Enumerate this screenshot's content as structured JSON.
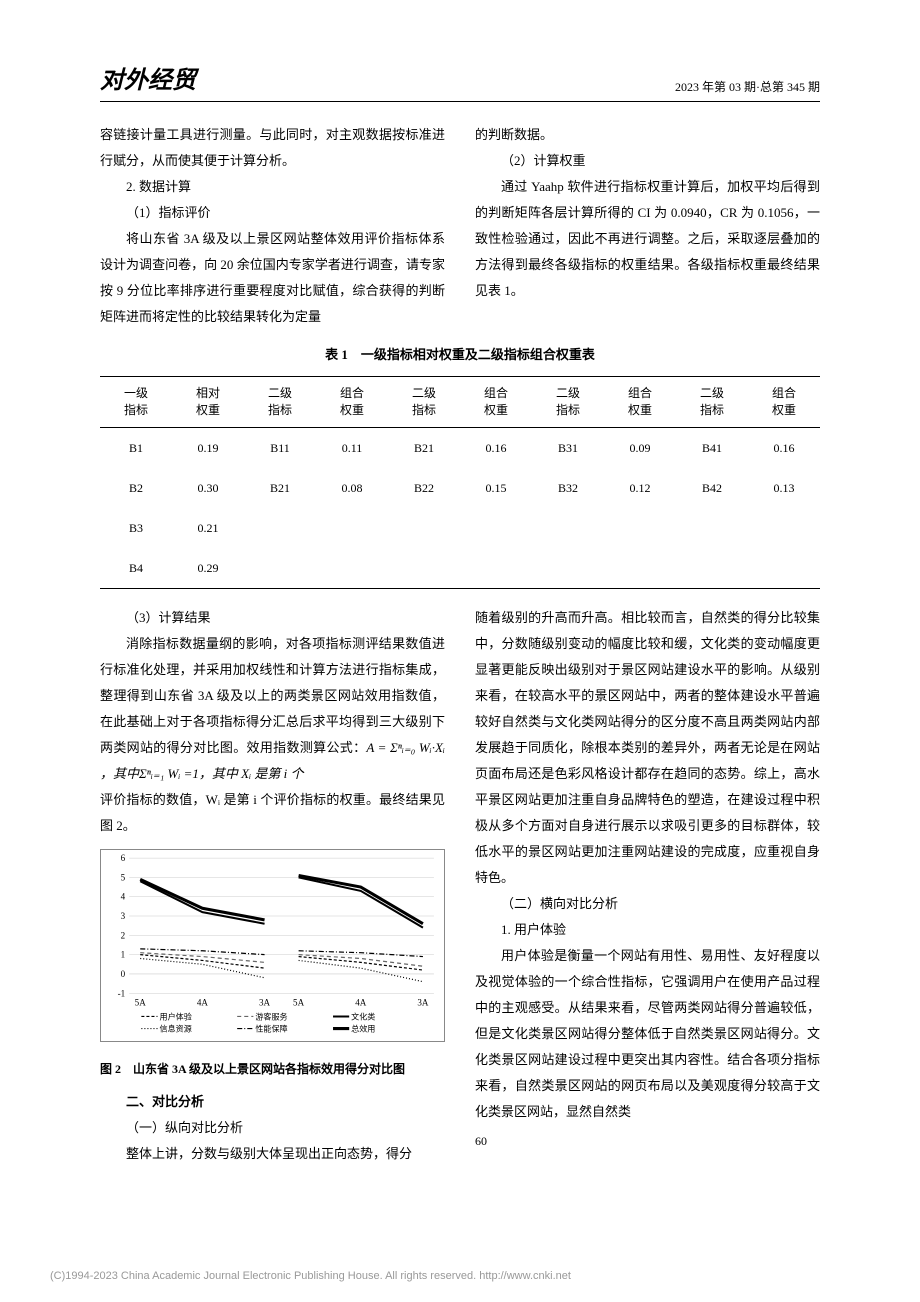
{
  "header": {
    "journal": "对外经贸",
    "issue": "2023 年第 03 期·总第 345 期"
  },
  "text": {
    "p1": "容链接计量工具进行测量。与此同时，对主观数据按标准进行赋分，从而使其便于计算分析。",
    "s2": "2. 数据计算",
    "s2_1": "（1）指标评价",
    "p2": "将山东省 3A 级及以上景区网站整体效用评价指标体系设计为调查问卷，向 20 余位国内专家学者进行调查，请专家按 9 分位比率排序进行重要程度对比赋值，综合获得的判断矩阵进而将定性的比较结果转化为定量",
    "p3": "的判断数据。",
    "s2_2": "（2）计算权重",
    "p4": "通过 Yaahp 软件进行指标权重计算后，加权平均后得到的判断矩阵各层计算所得的 CI 为 0.0940，CR 为 0.1056，一致性检验通过，因此不再进行调整。之后，采取逐层叠加的方法得到最终各级指标的权重结果。各级指标权重最终结果见表 1。",
    "s2_3": "（3）计算结果",
    "p5a": "消除指标数据量纲的影响，对各项指标测评结果数值进行标准化处理，并采用加权线性和计算方法进行指标集成，整理得到山东省 3A 级及以上的两类景区网站效用指数值，在此基础上对于各项指标得分汇总后求平均得到三大级别下两类网站的得分对比图。效用指数测算公式：",
    "formula": "A = Σⁿᵢ₌₀ Wᵢ·Xᵢ ，其中Σⁿᵢ₌₁ Wᵢ =1，其中 Xᵢ 是第 i 个",
    "p5b": "评价指标的数值，Wᵢ 是第 i 个评价指标的权重。最终结果见图 2。",
    "h2": "二、对比分析",
    "h2_1": "（一）纵向对比分析",
    "p6": "整体上讲，分数与级别大体呈现出正向态势，得分",
    "p7": "随着级别的升高而升高。相比较而言，自然类的得分比较集中，分数随级别变动的幅度比较和缓，文化类的变动幅度更显著更能反映出级别对于景区网站建设水平的影响。从级别来看，在较高水平的景区网站中，两者的整体建设水平普遍较好自然类与文化类网站得分的区分度不高且两类网站内部发展趋于同质化，除根本类别的差异外，两者无论是在网站页面布局还是色彩风格设计都存在趋同的态势。综上，高水平景区网站更加注重自身品牌特色的塑造，在建设过程中积极从多个方面对自身进行展示以求吸引更多的目标群体，较低水平的景区网站更加注重网站建设的完成度，应重视自身特色。",
    "h2_2": "（二）横向对比分析",
    "s_ux": "1. 用户体验",
    "p8": "用户体验是衡量一个网站有用性、易用性、友好程度以及视觉体验的一个综合性指标，它强调用户在使用产品过程中的主观感受。从结果来看，尽管两类网站得分普遍较低，但是文化类景区网站得分整体低于自然类景区网站得分。文化类景区网站建设过程中更突出其内容性。结合各项分指标来看，自然类景区网站的网页布局以及美观度得分较高于文化类景区网站，显然自然类"
  },
  "table1": {
    "title": "表 1　一级指标相对权重及二级指标组合权重表",
    "headers": [
      "一级\n指标",
      "相对\n权重",
      "二级\n指标",
      "组合\n权重",
      "二级\n指标",
      "组合\n权重",
      "二级\n指标",
      "组合\n权重",
      "二级\n指标",
      "组合\n权重"
    ],
    "rows": [
      [
        "B1",
        "0.19",
        "B11",
        "0.11",
        "B21",
        "0.16",
        "B31",
        "0.09",
        "B41",
        "0.16"
      ],
      [
        "B2",
        "0.30",
        "B21",
        "0.08",
        "B22",
        "0.15",
        "B32",
        "0.12",
        "B42",
        "0.13"
      ],
      [
        "B3",
        "0.21",
        "",
        "",
        "",
        "",
        "",
        "",
        "",
        ""
      ],
      [
        "B4",
        "0.29",
        "",
        "",
        "",
        "",
        "",
        "",
        "",
        ""
      ]
    ]
  },
  "chart": {
    "type": "line",
    "caption": "图 2　山东省 3A 级及以上景区网站各指标效用得分对比图",
    "x_categories": [
      "5A",
      "4A",
      "3A",
      "5A",
      "4A",
      "3A"
    ],
    "ylim": [
      -1,
      6
    ],
    "yticks": [
      -1,
      0,
      1,
      2,
      3,
      4,
      5,
      6
    ],
    "background_color": "#ffffff",
    "grid_color": "#cccccc",
    "label_fontsize": 9,
    "series": {
      "user_exp": {
        "label": "用户体验",
        "color": "#000000",
        "dash": "3,2",
        "values_left": [
          1.0,
          0.7,
          0.3
        ],
        "values_right": [
          0.9,
          0.6,
          0.2
        ]
      },
      "tourist_svc": {
        "label": "游客服务",
        "color": "#666666",
        "dash": "4,3",
        "values_left": [
          1.1,
          0.9,
          0.6
        ],
        "values_right": [
          1.0,
          0.8,
          0.4
        ]
      },
      "info_res": {
        "label": "信息资源",
        "color": "#000000",
        "dash": "1,2",
        "values_left": [
          0.8,
          0.5,
          -0.2
        ],
        "values_right": [
          0.7,
          0.3,
          -0.4
        ]
      },
      "culture": {
        "label": "文化类",
        "color": "#000000",
        "dash": "none",
        "width": 2,
        "values_left": [
          4.8,
          3.2,
          2.6
        ],
        "values_right": [
          5.0,
          4.3,
          2.4
        ]
      },
      "perf": {
        "label": "性能保障",
        "color": "#000000",
        "dash": "5,2,1,2",
        "values_left": [
          1.3,
          1.2,
          1.0
        ],
        "values_right": [
          1.2,
          1.1,
          0.9
        ]
      },
      "total": {
        "label": "总效用",
        "color": "#000000",
        "dash": "none",
        "width": 3,
        "values_left": [
          4.9,
          3.4,
          2.8
        ],
        "values_right": [
          5.1,
          4.5,
          2.6
        ]
      }
    }
  },
  "page_num": "60",
  "footer": "(C)1994-2023 China Academic Journal Electronic Publishing House. All rights reserved.    http://www.cnki.net"
}
